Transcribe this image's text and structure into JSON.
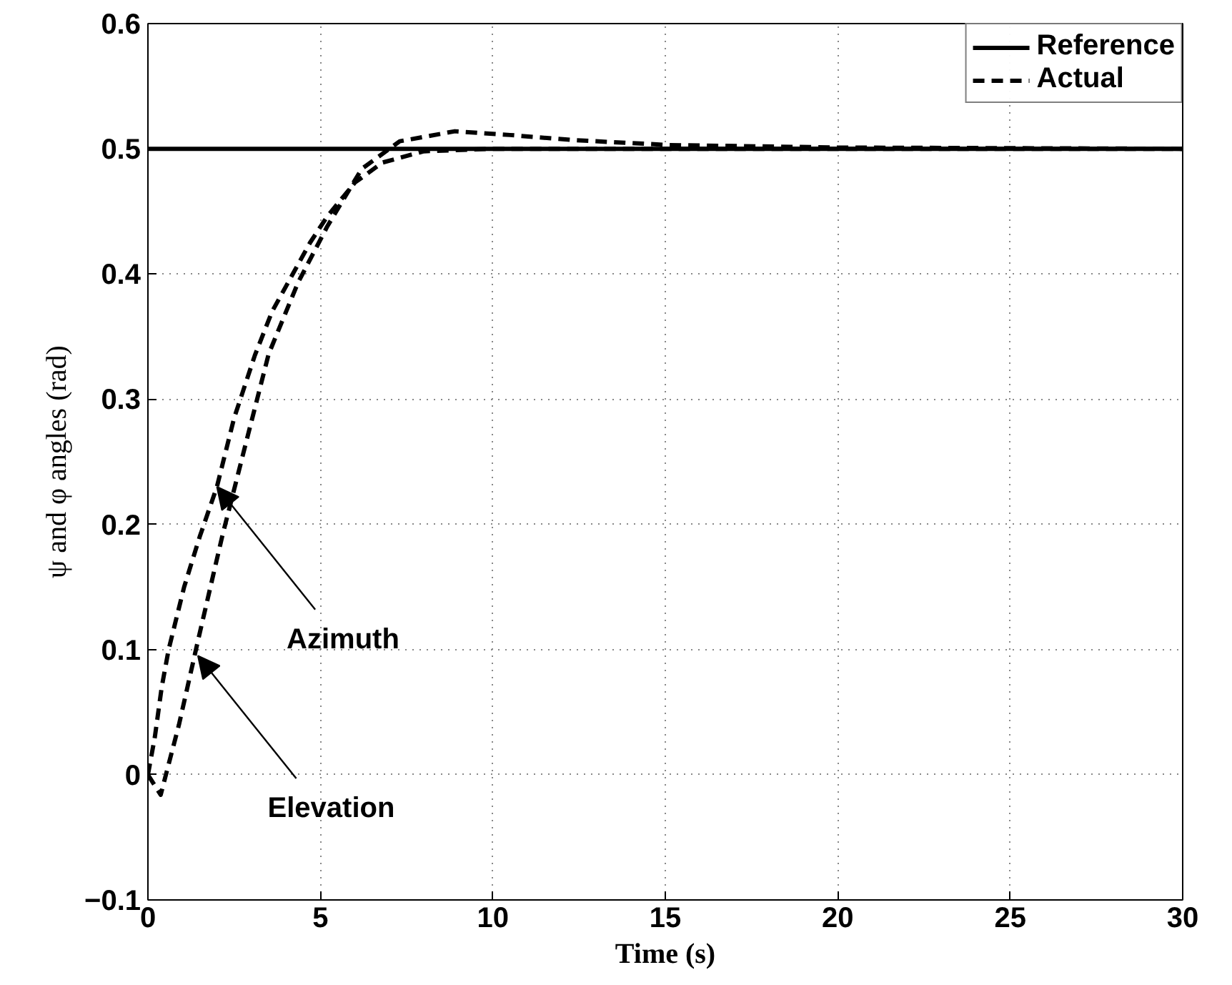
{
  "chart_data": {
    "type": "line",
    "xlabel": "Time (s)",
    "ylabel": "ψ and φ angles (rad)",
    "xlim": [
      0,
      30
    ],
    "ylim": [
      -0.1,
      0.6
    ],
    "xticks": [
      0,
      5,
      10,
      15,
      20,
      25,
      30
    ],
    "yticks": [
      {
        "value": -0.1,
        "label": "−0.1"
      },
      0,
      0.1,
      0.2,
      0.3,
      0.4,
      0.5,
      0.6
    ],
    "grid": true,
    "legend": "top right",
    "series": [
      {
        "name": "Reference",
        "color": "#000000",
        "line_style": "solid",
        "x": [
          0,
          30
        ],
        "values": [
          0.5,
          0.5
        ]
      },
      {
        "name": "Actual",
        "color": "#000000",
        "line_style": "dashed",
        "x": [
          0,
          0.2,
          0.4,
          0.6,
          1.05,
          1.5,
          2.0,
          2.5,
          3.1,
          3.6,
          4.2,
          4.7,
          5.2,
          6.0,
          6.8,
          8.0,
          10,
          15,
          20,
          30
        ],
        "values": [
          0,
          0.03,
          0.07,
          0.1,
          0.15,
          0.19,
          0.23,
          0.285,
          0.335,
          0.37,
          0.4,
          0.425,
          0.446,
          0.473,
          0.489,
          0.498,
          0.5,
          0.5,
          0.5,
          0.5
        ]
      },
      {
        "color": "#000000",
        "line_style": "dashed",
        "x": [
          0,
          0.37,
          0.9,
          1.45,
          2.15,
          2.86,
          3.5,
          4.35,
          5.2,
          6.2,
          7.3,
          8.9,
          10.5,
          12.3,
          15.1,
          20,
          30
        ],
        "values": [
          0,
          -0.016,
          0.04,
          0.107,
          0.19,
          0.267,
          0.336,
          0.393,
          0.438,
          0.484,
          0.506,
          0.514,
          0.511,
          0.507,
          0.503,
          0.501,
          0.5
        ]
      }
    ],
    "annotations": [
      {
        "text": "Azimuth",
        "x": 2.0,
        "y": 0.23
      },
      {
        "text": "Elevation",
        "x": 1.45,
        "y": 0.095
      }
    ]
  }
}
